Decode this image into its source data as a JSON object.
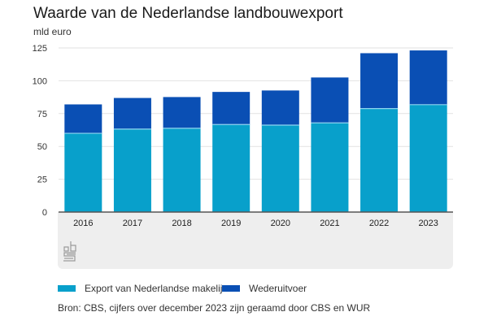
{
  "header": {
    "title": "Waarde van de Nederlandse landbouwexport",
    "unit": "mld euro"
  },
  "footer": {
    "source": "Bron: CBS, cijfers over december 2023 zijn geraamd door CBS en WUR",
    "logo": "cbs-logo-icon"
  },
  "colors": {
    "export": "#08a0cb",
    "wederuitvoer": "#0a4fb4",
    "grid": "#e2e2e2",
    "axis": "#555555",
    "panel": "#eeeeee"
  },
  "chart_data": {
    "type": "bar",
    "stacked": true,
    "title": "Waarde van de Nederlandse landbouwexport",
    "ylabel": "mld euro",
    "xlabel": "",
    "ylim": [
      0,
      125
    ],
    "yticks": [
      0,
      25,
      50,
      75,
      100,
      125
    ],
    "grid": true,
    "legend_position": "bottom-left",
    "categories": [
      "2016",
      "2017",
      "2018",
      "2019",
      "2020",
      "2021",
      "2022",
      "2023"
    ],
    "series": [
      {
        "name": "Export van Nederlandse makelij",
        "color": "#08a0cb",
        "values": [
          60.0,
          63.2,
          63.8,
          66.7,
          66.2,
          67.9,
          78.8,
          81.8
        ]
      },
      {
        "name": "Wederuitvoer",
        "color": "#0a4fb4",
        "values": [
          22.0,
          23.7,
          23.8,
          24.8,
          26.4,
          34.6,
          42.2,
          41.3
        ]
      }
    ]
  }
}
